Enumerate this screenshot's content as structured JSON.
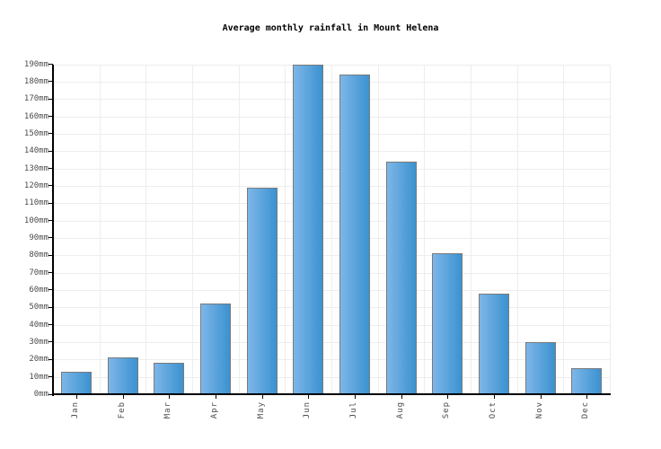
{
  "chart_data": {
    "type": "bar",
    "title": "Average monthly rainfall in Mount Helena",
    "categories": [
      "Jan",
      "Feb",
      "Mar",
      "Apr",
      "May",
      "Jun",
      "Jul",
      "Aug",
      "Sep",
      "Oct",
      "Nov",
      "Dec"
    ],
    "values": [
      13,
      21,
      18,
      52,
      119,
      190,
      184,
      134,
      81,
      58,
      30,
      15
    ],
    "unit": "mm",
    "xlabel": "",
    "ylabel": "",
    "ylim": [
      0,
      190
    ],
    "ytick_step": 10,
    "ytick_labels": [
      "0mm",
      "10mm",
      "20mm",
      "30mm",
      "40mm",
      "50mm",
      "60mm",
      "70mm",
      "80mm",
      "90mm",
      "100mm",
      "110mm",
      "120mm",
      "130mm",
      "140mm",
      "150mm",
      "160mm",
      "170mm",
      "180mm",
      "190mm"
    ],
    "grid": true,
    "legend_position": "none",
    "colors": {
      "background": "#ffffff",
      "bar_gradient_left": "#7db6e8",
      "bar_gradient_right": "#3b92d0",
      "bar_border": "#7a7a7a",
      "gridline": "#ededed",
      "axis": "#000000",
      "title_text": "#000000",
      "tick_text": "#4d4d4d"
    }
  }
}
